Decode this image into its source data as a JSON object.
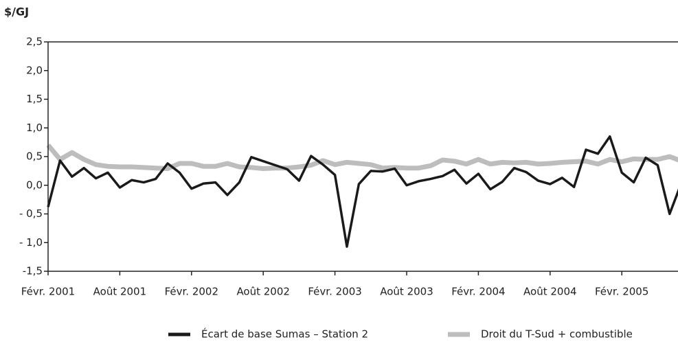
{
  "chart_data": {
    "type": "line",
    "y_label": "$/GJ",
    "categories": [
      "Févr. 2001",
      null,
      null,
      null,
      null,
      null,
      "Août 2001",
      null,
      null,
      null,
      null,
      null,
      "Févr. 2002",
      null,
      null,
      null,
      null,
      null,
      "Août 2002",
      null,
      null,
      null,
      null,
      null,
      "Févr. 2003",
      null,
      null,
      null,
      null,
      null,
      "Août 2003",
      null,
      null,
      null,
      null,
      null,
      "Févr. 2004",
      null,
      null,
      null,
      null,
      null,
      "Août 2004",
      null,
      null,
      null,
      null,
      null,
      "Févr. 2005",
      null,
      null,
      null,
      null,
      null
    ],
    "series": [
      {
        "name": "Écart de base Sumas – Station 2",
        "color": "#1a1a1a",
        "values": [
          -0.38,
          0.43,
          0.15,
          0.3,
          0.12,
          0.22,
          -0.04,
          0.09,
          0.05,
          0.11,
          0.38,
          0.22,
          -0.06,
          0.03,
          0.05,
          -0.17,
          0.05,
          0.49,
          0.42,
          0.35,
          0.28,
          0.08,
          0.51,
          0.36,
          0.18,
          -1.07,
          0.02,
          0.25,
          0.24,
          0.29,
          0.0,
          0.07,
          0.11,
          0.16,
          0.27,
          0.03,
          0.2,
          -0.07,
          0.06,
          0.3,
          0.23,
          0.08,
          0.02,
          0.13,
          -0.03,
          0.62,
          0.55,
          0.85,
          0.22,
          0.05,
          0.48,
          0.35,
          -0.5,
          0.05
        ]
      },
      {
        "name": "Droit du T-Sud + combustible",
        "color": "#bdbdbd",
        "values": [
          0.7,
          0.45,
          0.57,
          0.45,
          0.36,
          0.33,
          0.32,
          0.32,
          0.31,
          0.3,
          0.29,
          0.38,
          0.38,
          0.33,
          0.33,
          0.38,
          0.32,
          0.31,
          0.29,
          0.3,
          0.3,
          0.32,
          0.35,
          0.43,
          0.36,
          0.4,
          0.38,
          0.36,
          0.3,
          0.31,
          0.3,
          0.3,
          0.34,
          0.44,
          0.42,
          0.37,
          0.45,
          0.37,
          0.4,
          0.39,
          0.4,
          0.37,
          0.38,
          0.4,
          0.41,
          0.42,
          0.37,
          0.45,
          0.41,
          0.46,
          0.45,
          0.45,
          0.5,
          0.42
        ]
      }
    ],
    "ylim": [
      -1.5,
      2.5
    ],
    "yticks": [
      {
        "value": -1.5,
        "label": "-1,5"
      },
      {
        "value": -1.0,
        "label": "- 1,0"
      },
      {
        "value": -0.5,
        "label": "- 0,5"
      },
      {
        "value": 0,
        "label": "0,0"
      },
      {
        "value": 0.5,
        "label": "0,5"
      },
      {
        "value": 1.0,
        "label": "1,0"
      },
      {
        "value": 1.5,
        "label": "1,5"
      },
      {
        "value": 2.0,
        "label": "2,0"
      },
      {
        "value": 2.5,
        "label": "2,5"
      }
    ],
    "legend": "bottom"
  }
}
